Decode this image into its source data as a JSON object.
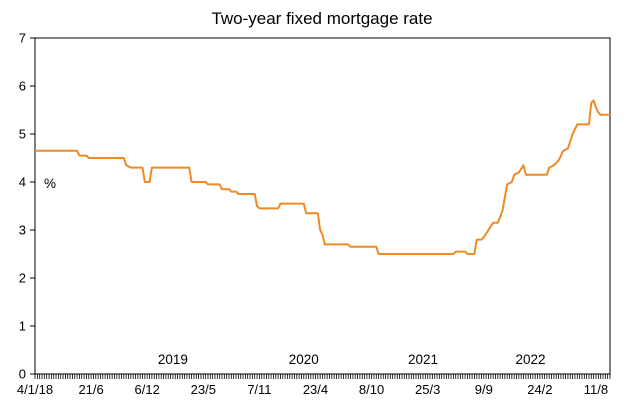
{
  "chart_data": {
    "type": "line",
    "title": "Two-year fixed mortgage rate",
    "y_unit_label": "%",
    "ylim": [
      0,
      7
    ],
    "y_ticks": [
      0,
      1,
      2,
      3,
      4,
      5,
      6,
      7
    ],
    "x_tick_labels": [
      "4/1/18",
      "21/6",
      "6/12",
      "23/5",
      "7/11",
      "23/4",
      "8/10",
      "25/3",
      "9/9",
      "24/2",
      "11/8"
    ],
    "x_year_labels": [
      "2019",
      "2020",
      "2021",
      "2022"
    ],
    "grid": false,
    "legend": "none",
    "line_color": "#F08A24",
    "series": [
      {
        "values": [
          [
            "2018-01-04",
            4.65
          ],
          [
            "2018-05-10",
            4.65
          ],
          [
            "2018-05-17",
            4.55
          ],
          [
            "2018-06-07",
            4.55
          ],
          [
            "2018-06-14",
            4.5
          ],
          [
            "2018-09-27",
            4.5
          ],
          [
            "2018-10-04",
            4.35
          ],
          [
            "2018-10-18",
            4.3
          ],
          [
            "2018-11-22",
            4.3
          ],
          [
            "2018-11-29",
            4.0
          ],
          [
            "2018-12-13",
            4.0
          ],
          [
            "2018-12-20",
            4.3
          ],
          [
            "2019-04-11",
            4.3
          ],
          [
            "2019-04-18",
            4.0
          ],
          [
            "2019-05-30",
            4.0
          ],
          [
            "2019-06-06",
            3.95
          ],
          [
            "2019-07-11",
            3.95
          ],
          [
            "2019-07-18",
            3.85
          ],
          [
            "2019-08-08",
            3.85
          ],
          [
            "2019-08-15",
            3.8
          ],
          [
            "2019-08-29",
            3.8
          ],
          [
            "2019-09-05",
            3.75
          ],
          [
            "2019-10-24",
            3.75
          ],
          [
            "2019-10-31",
            3.5
          ],
          [
            "2019-11-07",
            3.45
          ],
          [
            "2020-01-02",
            3.45
          ],
          [
            "2020-01-09",
            3.55
          ],
          [
            "2020-03-19",
            3.55
          ],
          [
            "2020-03-26",
            3.35
          ],
          [
            "2020-04-30",
            3.35
          ],
          [
            "2020-05-07",
            3.0
          ],
          [
            "2020-05-14",
            2.9
          ],
          [
            "2020-05-21",
            2.7
          ],
          [
            "2020-07-30",
            2.7
          ],
          [
            "2020-08-06",
            2.65
          ],
          [
            "2020-10-22",
            2.65
          ],
          [
            "2020-10-29",
            2.5
          ],
          [
            "2021-06-10",
            2.5
          ],
          [
            "2021-06-17",
            2.55
          ],
          [
            "2021-07-15",
            2.55
          ],
          [
            "2021-07-22",
            2.5
          ],
          [
            "2021-08-12",
            2.5
          ],
          [
            "2021-08-19",
            2.8
          ],
          [
            "2021-09-02",
            2.8
          ],
          [
            "2021-09-09",
            2.85
          ],
          [
            "2021-09-23",
            3.0
          ],
          [
            "2021-10-07",
            3.15
          ],
          [
            "2021-10-21",
            3.15
          ],
          [
            "2021-11-04",
            3.4
          ],
          [
            "2021-11-18",
            3.95
          ],
          [
            "2021-12-02",
            4.0
          ],
          [
            "2021-12-09",
            4.15
          ],
          [
            "2021-12-23",
            4.2
          ],
          [
            "2022-01-06",
            4.35
          ],
          [
            "2022-01-13",
            4.15
          ],
          [
            "2022-03-17",
            4.15
          ],
          [
            "2022-03-24",
            4.3
          ],
          [
            "2022-04-07",
            4.35
          ],
          [
            "2022-04-21",
            4.45
          ],
          [
            "2022-05-05",
            4.65
          ],
          [
            "2022-05-19",
            4.7
          ],
          [
            "2022-06-02",
            5.0
          ],
          [
            "2022-06-16",
            5.2
          ],
          [
            "2022-07-14",
            5.2
          ],
          [
            "2022-07-21",
            5.2
          ],
          [
            "2022-07-28",
            5.65
          ],
          [
            "2022-08-04",
            5.7
          ],
          [
            "2022-08-11",
            5.55
          ],
          [
            "2022-08-18",
            5.45
          ],
          [
            "2022-08-25",
            5.4
          ],
          [
            "2022-09-22",
            5.4
          ]
        ]
      }
    ]
  }
}
